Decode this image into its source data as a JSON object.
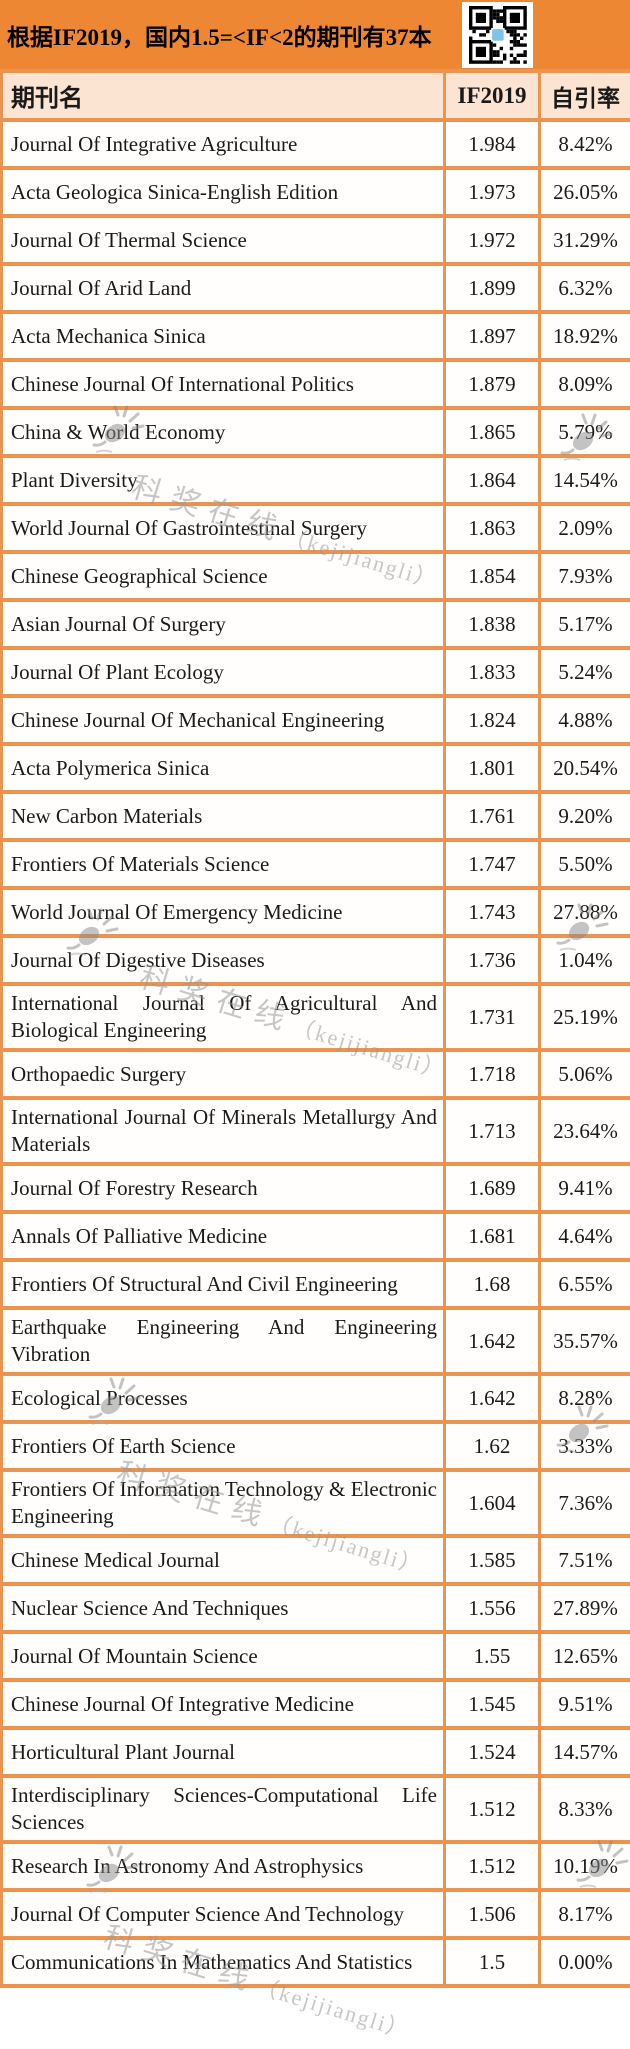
{
  "header": {
    "title": "根据IF2019，国内1.5=<IF<2的期刊有37本"
  },
  "table": {
    "columns": [
      "期刊名",
      "IF2019",
      "自引率"
    ],
    "rows": [
      {
        "name": "Journal Of Integrative Agriculture",
        "if2019": "1.984",
        "self_citation": "8.42%"
      },
      {
        "name": "Acta Geologica Sinica-English Edition",
        "if2019": "1.973",
        "self_citation": "26.05%"
      },
      {
        "name": "Journal Of Thermal Science",
        "if2019": "1.972",
        "self_citation": "31.29%"
      },
      {
        "name": "Journal Of Arid Land",
        "if2019": "1.899",
        "self_citation": "6.32%"
      },
      {
        "name": "Acta Mechanica Sinica",
        "if2019": "1.897",
        "self_citation": "18.92%"
      },
      {
        "name": "Chinese Journal Of International Politics",
        "if2019": "1.879",
        "self_citation": "8.09%"
      },
      {
        "name": "China & World Economy",
        "if2019": "1.865",
        "self_citation": "5.79%"
      },
      {
        "name": "Plant Diversity",
        "if2019": "1.864",
        "self_citation": "14.54%"
      },
      {
        "name": "World Journal Of Gastrointestinal Surgery",
        "if2019": "1.863",
        "self_citation": "2.09%"
      },
      {
        "name": "Chinese Geographical Science",
        "if2019": "1.854",
        "self_citation": "7.93%"
      },
      {
        "name": "Asian Journal Of Surgery",
        "if2019": "1.838",
        "self_citation": "5.17%"
      },
      {
        "name": "Journal Of Plant Ecology",
        "if2019": "1.833",
        "self_citation": "5.24%"
      },
      {
        "name": "Chinese Journal Of Mechanical Engineering",
        "if2019": "1.824",
        "self_citation": "4.88%"
      },
      {
        "name": "Acta Polymerica Sinica",
        "if2019": "1.801",
        "self_citation": "20.54%"
      },
      {
        "name": "New Carbon Materials",
        "if2019": "1.761",
        "self_citation": "9.20%"
      },
      {
        "name": "Frontiers Of Materials Science",
        "if2019": "1.747",
        "self_citation": "5.50%"
      },
      {
        "name": "World Journal Of Emergency Medicine",
        "if2019": "1.743",
        "self_citation": "27.88%"
      },
      {
        "name": "Journal Of Digestive Diseases",
        "if2019": "1.736",
        "self_citation": "1.04%"
      },
      {
        "name": "International Journal Of Agricultural And Biological Engineering",
        "if2019": "1.731",
        "self_citation": "25.19%"
      },
      {
        "name": "Orthopaedic Surgery",
        "if2019": "1.718",
        "self_citation": "5.06%"
      },
      {
        "name": "International Journal Of Minerals Metallurgy And Materials",
        "if2019": "1.713",
        "self_citation": "23.64%"
      },
      {
        "name": "Journal Of Forestry Research",
        "if2019": "1.689",
        "self_citation": "9.41%"
      },
      {
        "name": "Annals Of Palliative Medicine",
        "if2019": "1.681",
        "self_citation": "4.64%"
      },
      {
        "name": "Frontiers Of Structural And Civil Engineering",
        "if2019": "1.68",
        "self_citation": "6.55%"
      },
      {
        "name": "Earthquake Engineering And Engineering Vibration",
        "if2019": "1.642",
        "self_citation": "35.57%"
      },
      {
        "name": "Ecological Processes",
        "if2019": "1.642",
        "self_citation": "8.28%"
      },
      {
        "name": "Frontiers Of Earth Science",
        "if2019": "1.62",
        "self_citation": "3.33%"
      },
      {
        "name": "Frontiers Of Information Technology & Electronic Engineering",
        "if2019": "1.604",
        "self_citation": "7.36%"
      },
      {
        "name": "Chinese Medical Journal",
        "if2019": "1.585",
        "self_citation": "7.51%"
      },
      {
        "name": "Nuclear Science And Techniques",
        "if2019": "1.556",
        "self_citation": "27.89%"
      },
      {
        "name": "Journal Of Mountain Science",
        "if2019": "1.55",
        "self_citation": "12.65%"
      },
      {
        "name": "Chinese Journal Of Integrative Medicine",
        "if2019": "1.545",
        "self_citation": "9.51%"
      },
      {
        "name": "Horticultural Plant Journal",
        "if2019": "1.524",
        "self_citation": "14.57%"
      },
      {
        "name": "Interdisciplinary Sciences-Computational Life Sciences",
        "if2019": "1.512",
        "self_citation": "8.33%"
      },
      {
        "name": "Research In Astronomy And Astrophysics",
        "if2019": "1.512",
        "self_citation": "10.19%"
      },
      {
        "name": "Journal Of Computer Science And Technology",
        "if2019": "1.506",
        "self_citation": "8.17%"
      },
      {
        "name": "Communications In Mathematics And Statistics",
        "if2019": "1.5",
        "self_citation": "0.00%"
      }
    ]
  },
  "watermark": {
    "cjk": "科奖在线",
    "latin": "（kejijiangli）"
  },
  "colors": {
    "title_bg": "#ed8733",
    "table_border": "#eb9350",
    "header_row_bg": "#fbe5d2",
    "text": "#1a1a1a",
    "watermark": "#9a9a9a",
    "qr_logo": "#7ec4e8"
  }
}
